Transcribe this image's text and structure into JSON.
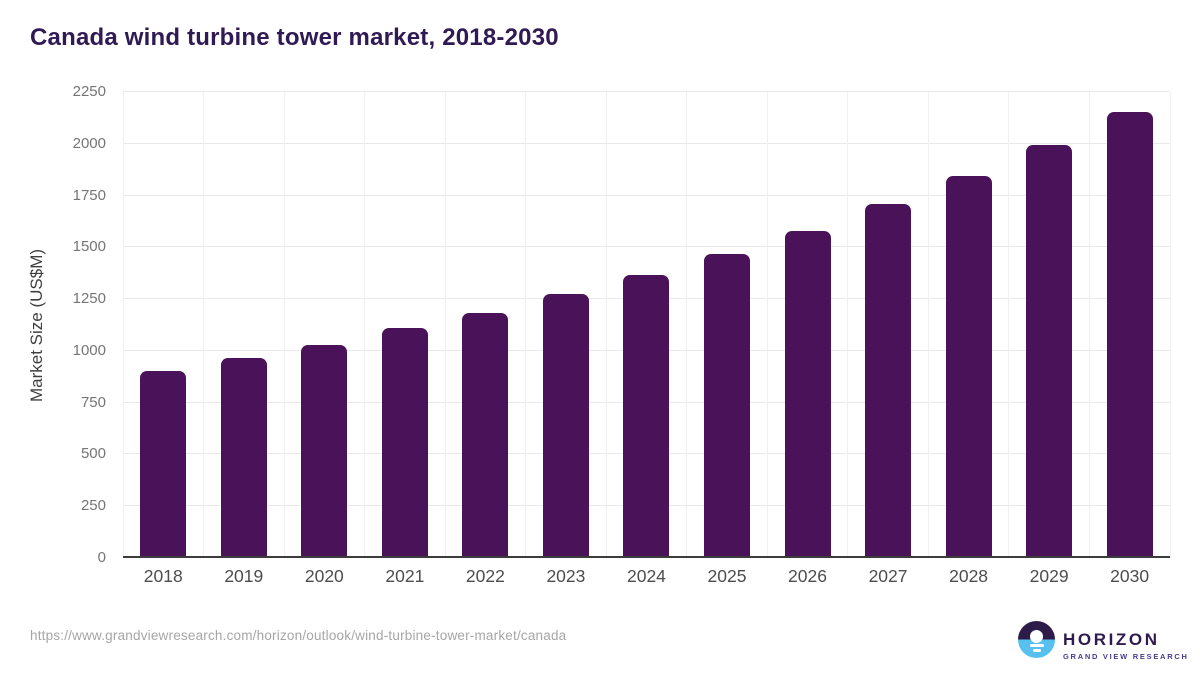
{
  "header": {
    "title": "Canada wind turbine tower market, 2018-2030"
  },
  "chart_data": {
    "type": "bar",
    "title": "Canada wind turbine tower market, 2018-2030",
    "categories": [
      "2018",
      "2019",
      "2020",
      "2021",
      "2022",
      "2023",
      "2024",
      "2025",
      "2026",
      "2027",
      "2028",
      "2029",
      "2030"
    ],
    "values": [
      905,
      965,
      1030,
      1110,
      1185,
      1275,
      1365,
      1470,
      1580,
      1710,
      1845,
      1995,
      2155
    ],
    "xlabel": "",
    "ylabel": "Market Size (US$M)",
    "ylim": [
      0,
      2250
    ],
    "ytick_step": 250,
    "yticks": [
      0,
      250,
      500,
      750,
      1000,
      1250,
      1500,
      1750,
      2000,
      2250
    ],
    "grid": "horizontal solid light + faint vertical band separators",
    "legend": "none",
    "bar_color": "#4a1259"
  },
  "footer": {
    "source_url": "https://www.grandviewresearch.com/horizon/outlook/wind-turbine-tower-market/canada",
    "logo": {
      "name": "HORIZON",
      "subtitle": "GRAND VIEW RESEARCH",
      "icon": "horizon-sunset-circle-icon"
    }
  },
  "colors": {
    "background": "#ffffff",
    "title": "#301a54",
    "bar": "#4a1259",
    "axis_line": "#3c3c3c",
    "gridline": "#e9e9e9",
    "vertical_gridline": "#f0f0f0",
    "y_tick_label": "#757575",
    "x_tick_label": "#4d4d4d",
    "y_axis_title": "#3f3f3f",
    "source_url_text": "#a6a6a6",
    "logo_purple": "#2e1a4d",
    "logo_blue": "#56c1ef",
    "logo_subtitle_purple": "#4a3a93"
  }
}
